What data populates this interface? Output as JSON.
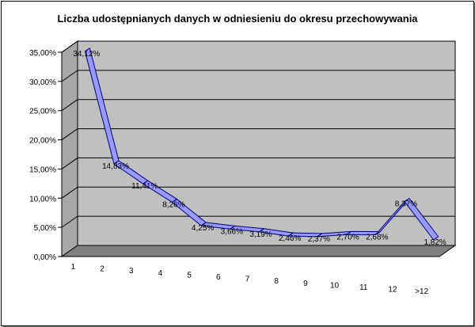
{
  "chart_data": {
    "type": "line",
    "title": "Liczba udostępnianych danych w odniesieniu do okresu przechowywania",
    "categories": [
      "1",
      "2",
      "3",
      "4",
      "5",
      "6",
      "7",
      "8",
      "9",
      "10",
      "11",
      "12",
      ">12"
    ],
    "values": [
      34.12,
      14.83,
      11.41,
      8.26,
      4.25,
      3.66,
      3.19,
      2.46,
      2.37,
      2.7,
      2.68,
      8.37,
      1.82
    ],
    "data_labels": [
      "34,12%",
      "14,83%",
      "11,41%",
      "8,26%",
      "4,25%",
      "3,66%",
      "3,19%",
      "2,46%",
      "2,37%",
      "2,70%",
      "2,68%",
      "8,37%",
      "1,82%"
    ],
    "ylim": [
      0,
      35
    ],
    "yticks": [
      0,
      5,
      10,
      15,
      20,
      25,
      30,
      35
    ],
    "ytick_labels": [
      "0,00%",
      "5,00%",
      "10,00%",
      "15,00%",
      "20,00%",
      "25,00%",
      "30,00%",
      "35,00%"
    ],
    "grid": true,
    "style": "3d-line",
    "colors": {
      "line_fill": "#9999ff",
      "line_edge": "#000080",
      "wall": "#c0c0c0",
      "floor": "#808080"
    }
  }
}
